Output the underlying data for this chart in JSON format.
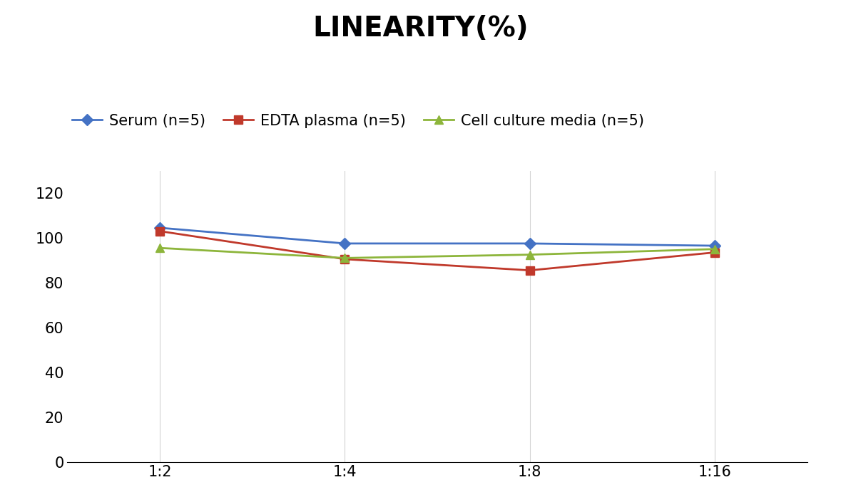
{
  "title": "LINEARITY(%)",
  "title_fontsize": 28,
  "title_fontweight": "bold",
  "x_labels": [
    "1:2",
    "1:4",
    "1:8",
    "1:16"
  ],
  "x_positions": [
    0,
    1,
    2,
    3
  ],
  "series": [
    {
      "label": "Serum (n=5)",
      "values": [
        104.5,
        97.5,
        97.5,
        96.5
      ],
      "color": "#4472C4",
      "marker": "D",
      "markersize": 8,
      "linewidth": 2
    },
    {
      "label": "EDTA plasma (n=5)",
      "values": [
        103.0,
        90.5,
        85.5,
        93.5
      ],
      "color": "#C0392B",
      "marker": "s",
      "markersize": 8,
      "linewidth": 2
    },
    {
      "label": "Cell culture media (n=5)",
      "values": [
        95.5,
        91.0,
        92.5,
        95.0
      ],
      "color": "#8DB53B",
      "marker": "^",
      "markersize": 9,
      "linewidth": 2
    }
  ],
  "ylim": [
    0,
    130
  ],
  "yticks": [
    0,
    20,
    40,
    60,
    80,
    100,
    120
  ],
  "background_color": "#ffffff",
  "legend_fontsize": 15,
  "tick_fontsize": 15,
  "fig_width": 11.79,
  "fig_height": 7.05
}
